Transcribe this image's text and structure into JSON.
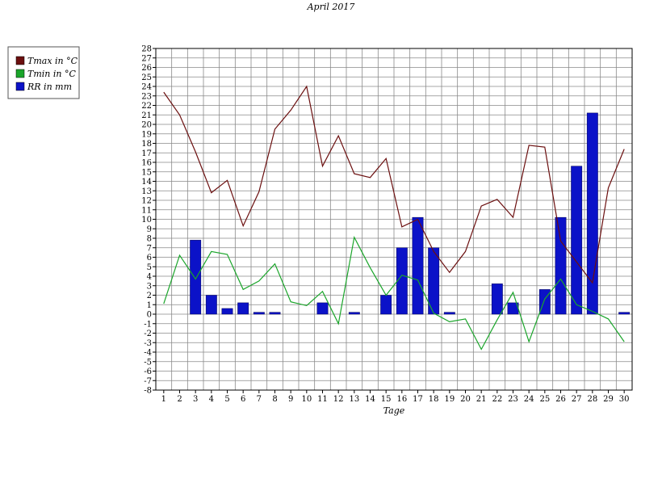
{
  "chart_data": {
    "type": "line",
    "title": "April 2017",
    "xlabel": "Tage",
    "ylabel": "",
    "ylim": [
      -8,
      28
    ],
    "grid": true,
    "legend_position": "left",
    "x": [
      1,
      2,
      3,
      4,
      5,
      6,
      7,
      8,
      9,
      10,
      11,
      12,
      13,
      14,
      15,
      16,
      17,
      18,
      19,
      20,
      21,
      22,
      23,
      24,
      25,
      26,
      27,
      28,
      29,
      30
    ],
    "series": [
      {
        "name": "Tmax in °C",
        "kind": "line",
        "color": "#6b0f0f",
        "values": [
          23.4,
          21.0,
          17.1,
          12.8,
          14.1,
          9.3,
          12.9,
          19.5,
          21.5,
          24.0,
          15.6,
          18.8,
          14.8,
          14.4,
          16.4,
          9.2,
          10.0,
          6.6,
          4.4,
          6.6,
          11.4,
          12.1,
          10.2,
          17.8,
          17.6,
          7.7,
          5.5,
          3.3,
          13.3,
          17.4
        ]
      },
      {
        "name": "Tmin in °C",
        "kind": "line",
        "color": "#1aa52a",
        "values": [
          1.1,
          6.2,
          3.7,
          6.6,
          6.3,
          2.6,
          3.5,
          5.3,
          1.3,
          0.9,
          2.4,
          -1.0,
          8.1,
          4.9,
          2.0,
          4.1,
          3.6,
          0.1,
          -0.8,
          -0.5,
          -3.7,
          -0.6,
          2.3,
          -2.9,
          1.6,
          3.7,
          1.0,
          0.3,
          -0.5,
          -2.9
        ]
      },
      {
        "name": "RR in mm",
        "kind": "bar",
        "color": "#0b12c8",
        "values": [
          0,
          0,
          7.8,
          2.0,
          0.6,
          1.2,
          0.2,
          0.2,
          0,
          0,
          1.2,
          0,
          0.2,
          0,
          2.0,
          7.0,
          10.2,
          7.0,
          0.2,
          0,
          0,
          3.2,
          1.2,
          0,
          2.6,
          10.2,
          15.6,
          21.2,
          0,
          0.2
        ]
      }
    ],
    "y_ticks": [
      "28",
      "27",
      "26",
      "25",
      "24",
      "23",
      "22",
      "21",
      "20",
      "19",
      "18",
      "17",
      "16",
      "15",
      "14",
      "13",
      "12",
      "11",
      "10",
      "9",
      "8",
      "7",
      "6",
      "5",
      "4",
      "3",
      "2",
      "1",
      "0",
      "-1",
      "-2",
      "-3",
      "-4",
      "-5",
      "-6",
      "-7",
      "-8"
    ],
    "x_ticks": [
      "1",
      "2",
      "3",
      "4",
      "5",
      "6",
      "7",
      "8",
      "9",
      "10",
      "11",
      "12",
      "13",
      "14",
      "15",
      "16",
      "17",
      "18",
      "19",
      "20",
      "21",
      "22",
      "23",
      "24",
      "25",
      "26",
      "27",
      "28",
      "29",
      "30"
    ]
  }
}
